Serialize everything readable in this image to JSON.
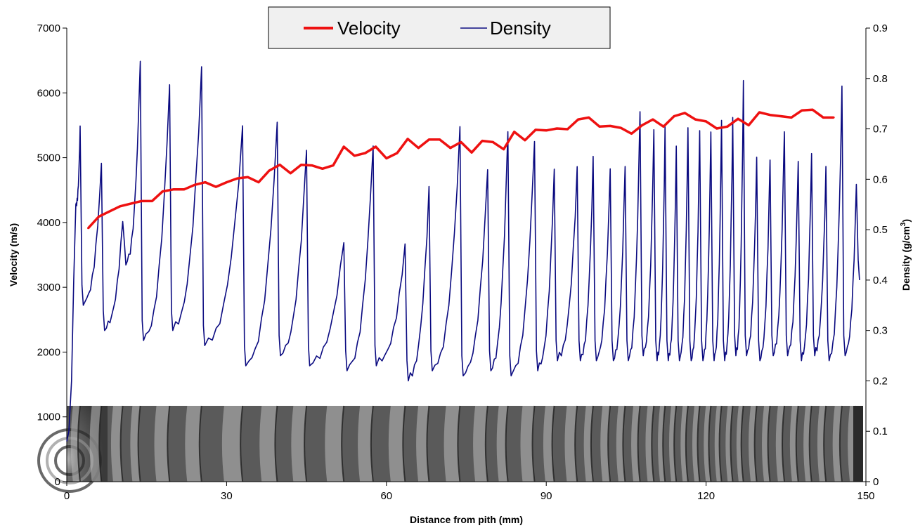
{
  "chart_data": {
    "type": "line",
    "xlabel": "Distance from pith (mm)",
    "ylabel": "Velocity (m/s)",
    "y2label_main": "Density (g/cm",
    "y2label_sup": "3",
    "y2label_end": ")",
    "xlim": [
      0,
      150
    ],
    "ylim": [
      0,
      7000
    ],
    "y2lim": [
      0,
      0.9
    ],
    "x_ticks": [
      "0",
      "30",
      "60",
      "90",
      "120",
      "150"
    ],
    "y_ticks": [
      "0",
      "1000",
      "2000",
      "3000",
      "4000",
      "5000",
      "6000",
      "7000"
    ],
    "y2_ticks": [
      "0",
      "0.1",
      "0.2",
      "0.3",
      "0.4",
      "0.5",
      "0.6",
      "0.7",
      "0.8",
      "0.9"
    ],
    "legend_position": "top-center",
    "colors": {
      "velocity": "#ee1111",
      "density": "#0a0a80"
    },
    "series": [
      {
        "name": "Velocity",
        "axis": "left",
        "x": [
          4,
          6,
          8,
          10,
          12,
          14,
          16,
          18,
          20,
          22,
          24,
          26,
          28,
          30,
          32,
          34,
          36,
          38,
          40,
          42,
          44,
          46,
          48,
          50,
          52,
          54,
          56,
          58,
          60,
          62,
          64,
          66,
          68,
          70,
          72,
          74,
          76,
          78,
          80,
          82,
          84,
          86,
          88,
          90,
          92,
          94,
          96,
          98,
          100,
          102,
          104,
          106,
          108,
          110,
          112,
          114,
          116,
          118,
          120,
          122,
          124,
          126,
          128,
          130,
          132,
          134,
          136,
          138,
          140,
          142,
          144
        ],
        "values": [
          3910,
          4090,
          4170,
          4250,
          4290,
          4330,
          4330,
          4480,
          4510,
          4510,
          4580,
          4620,
          4550,
          4620,
          4680,
          4700,
          4620,
          4800,
          4890,
          4760,
          4890,
          4880,
          4830,
          4880,
          5170,
          5030,
          5070,
          5170,
          4990,
          5070,
          5290,
          5150,
          5280,
          5280,
          5150,
          5240,
          5080,
          5260,
          5240,
          5130,
          5400,
          5270,
          5430,
          5420,
          5450,
          5440,
          5590,
          5620,
          5480,
          5490,
          5460,
          5370,
          5500,
          5590,
          5480,
          5640,
          5690,
          5590,
          5560,
          5450,
          5480,
          5600,
          5500,
          5700,
          5660,
          5640,
          5620,
          5730,
          5740,
          5620,
          5620
        ]
      },
      {
        "name": "Density",
        "axis": "right",
        "rings": [
          [
            2.5,
            0.7,
            0.35
          ],
          [
            6.5,
            0.63,
            0.3
          ],
          [
            10.5,
            0.52,
            0.43
          ],
          [
            13.8,
            0.84,
            0.28
          ],
          [
            19.3,
            0.79,
            0.3
          ],
          [
            25.3,
            0.82,
            0.27
          ],
          [
            33.0,
            0.7,
            0.23
          ],
          [
            39.5,
            0.71,
            0.25
          ],
          [
            45.0,
            0.66,
            0.23
          ],
          [
            52.0,
            0.48,
            0.22
          ],
          [
            57.5,
            0.67,
            0.23
          ],
          [
            63.5,
            0.47,
            0.2
          ],
          [
            68.0,
            0.58,
            0.22
          ],
          [
            73.8,
            0.7,
            0.21
          ],
          [
            79.0,
            0.62,
            0.22
          ],
          [
            82.8,
            0.7,
            0.21
          ],
          [
            87.8,
            0.68,
            0.22
          ],
          [
            91.5,
            0.62,
            0.24
          ],
          [
            95.8,
            0.62,
            0.24
          ],
          [
            98.8,
            0.64,
            0.24
          ],
          [
            102.0,
            0.62,
            0.24
          ],
          [
            104.8,
            0.63,
            0.24
          ],
          [
            107.6,
            0.74,
            0.25
          ],
          [
            110.2,
            0.7,
            0.24
          ],
          [
            112.3,
            0.7,
            0.24
          ],
          [
            114.4,
            0.66,
            0.24
          ],
          [
            116.6,
            0.7,
            0.24
          ],
          [
            118.8,
            0.7,
            0.24
          ],
          [
            120.9,
            0.7,
            0.24
          ],
          [
            122.9,
            0.72,
            0.24
          ],
          [
            125.0,
            0.72,
            0.25
          ],
          [
            127.0,
            0.79,
            0.25
          ],
          [
            129.5,
            0.64,
            0.24
          ],
          [
            132.0,
            0.64,
            0.25
          ],
          [
            134.7,
            0.7,
            0.25
          ],
          [
            137.3,
            0.64,
            0.24
          ],
          [
            139.8,
            0.65,
            0.25
          ],
          [
            142.5,
            0.62,
            0.24
          ],
          [
            145.5,
            0.78,
            0.25
          ],
          [
            148.2,
            0.59,
            0.4
          ]
        ]
      }
    ],
    "inset": "wood-core-image"
  }
}
